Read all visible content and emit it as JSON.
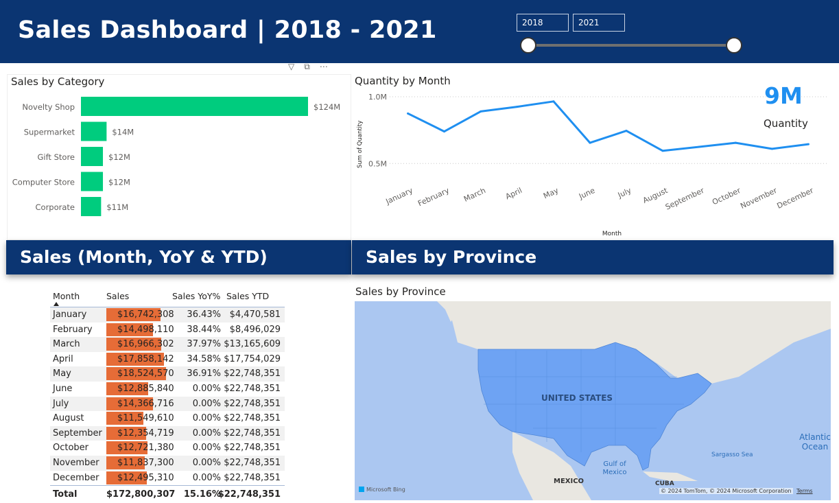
{
  "header": {
    "title": "Sales Dashboard | 2018 - 2021",
    "year_start": "2018",
    "year_end": "2021",
    "range_start_fraction": 0,
    "range_end_fraction": 1
  },
  "colors": {
    "header_bg": "#0b3572",
    "category_bar": "#00cc7e",
    "line": "#1f8ff0",
    "table_bar": "#e66c37",
    "map_land": "#6ea3f3",
    "map_water": "#abc7f1"
  },
  "category_chart": {
    "title": "Sales by Category",
    "chart_data": {
      "type": "bar",
      "orientation": "horizontal",
      "title": "Sales by Category",
      "categories": [
        "Novelty Shop",
        "Supermarket",
        "Gift Store",
        "Computer Store",
        "Corporate"
      ],
      "values": [
        124,
        14,
        12,
        12,
        11
      ],
      "value_labels": [
        "$124M",
        "$14M",
        "$12M",
        "$12M",
        "$11M"
      ],
      "unit": "$M"
    }
  },
  "quantity_chart": {
    "title": "Quantity by Month",
    "kpi_value": "9M",
    "kpi_label": "Quantity",
    "chart_data": {
      "type": "line",
      "title": "Quantity by Month",
      "xlabel": "Month",
      "ylabel": "Sum of Quantity",
      "x": [
        "January",
        "February",
        "March",
        "April",
        "May",
        "June",
        "July",
        "August",
        "September",
        "October",
        "November",
        "December"
      ],
      "series": [
        {
          "values": [
            0.875,
            0.74,
            0.89,
            0.925,
            0.965,
            0.655,
            0.745,
            0.595,
            0.625,
            0.655,
            0.61,
            0.645
          ]
        }
      ],
      "y_ticks": [
        "1.0M",
        "0.5M"
      ],
      "y_tick_values": [
        1.0,
        0.5
      ],
      "ylim": [
        0.45,
        1.0
      ],
      "unit": "M",
      "grid": "horizontal dotted"
    }
  },
  "bands": {
    "left": "Sales (Month, YoY & YTD)",
    "right": "Sales by Province"
  },
  "sales_table": {
    "columns": [
      "Month",
      "Sales",
      "Sales YoY%",
      "Sales YTD"
    ],
    "rows": [
      {
        "month": "January",
        "sales": "$16,742,308",
        "sales_value": 16742308,
        "yoy": "36.43%",
        "ytd": "$4,470,581"
      },
      {
        "month": "February",
        "sales": "$14,498,110",
        "sales_value": 14498110,
        "yoy": "38.44%",
        "ytd": "$8,496,029"
      },
      {
        "month": "March",
        "sales": "$16,966,302",
        "sales_value": 16966302,
        "yoy": "37.97%",
        "ytd": "$13,165,609"
      },
      {
        "month": "April",
        "sales": "$17,858,142",
        "sales_value": 17858142,
        "yoy": "34.58%",
        "ytd": "$17,754,029"
      },
      {
        "month": "May",
        "sales": "$18,524,570",
        "sales_value": 18524570,
        "yoy": "36.91%",
        "ytd": "$22,748,351"
      },
      {
        "month": "June",
        "sales": "$12,885,840",
        "sales_value": 12885840,
        "yoy": "0.00%",
        "ytd": "$22,748,351"
      },
      {
        "month": "July",
        "sales": "$14,366,716",
        "sales_value": 14366716,
        "yoy": "0.00%",
        "ytd": "$22,748,351"
      },
      {
        "month": "August",
        "sales": "$11,549,610",
        "sales_value": 11549610,
        "yoy": "0.00%",
        "ytd": "$22,748,351"
      },
      {
        "month": "September",
        "sales": "$12,354,719",
        "sales_value": 12354719,
        "yoy": "0.00%",
        "ytd": "$22,748,351"
      },
      {
        "month": "October",
        "sales": "$12,721,380",
        "sales_value": 12721380,
        "yoy": "0.00%",
        "ytd": "$22,748,351"
      },
      {
        "month": "November",
        "sales": "$11,837,300",
        "sales_value": 11837300,
        "yoy": "0.00%",
        "ytd": "$22,748,351"
      },
      {
        "month": "December",
        "sales": "$12,495,310",
        "sales_value": 12495310,
        "yoy": "0.00%",
        "ytd": "$22,748,351"
      }
    ],
    "total": {
      "label": "Total",
      "sales": "$172,800,307",
      "yoy": "15.16%",
      "ytd": "$22,748,351"
    }
  },
  "province_map": {
    "title": "Sales by Province",
    "labels": {
      "country": "UNITED STATES",
      "ocean": "Atlantic Ocean",
      "sea": "Sargasso Sea",
      "gulf": "Gulf of Mexico",
      "mexico": "MEXICO",
      "cuba": "CUBA",
      "logo": "Microsoft Bing",
      "copyright": "© 2024 TomTom, © 2024 Microsoft Corporation",
      "terms": "Terms"
    }
  }
}
